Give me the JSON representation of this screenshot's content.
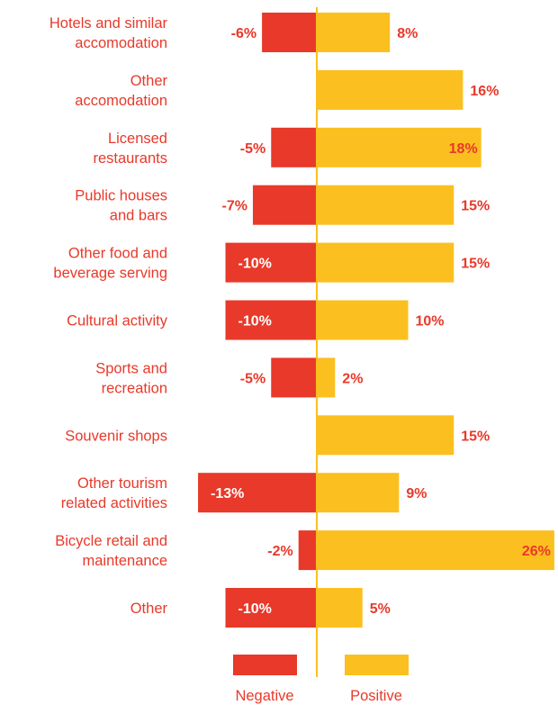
{
  "chart_data": {
    "type": "bar",
    "orientation": "horizontal-diverging",
    "title": "",
    "xlabel": "",
    "ylabel": "",
    "categories": [
      [
        "Hotels and similar",
        "accomodation"
      ],
      [
        "Other",
        "accomodation"
      ],
      [
        "Licensed",
        "restaurants"
      ],
      [
        "Public houses",
        "and bars"
      ],
      [
        "Other food and",
        "beverage serving"
      ],
      [
        "Cultural activity"
      ],
      [
        "Sports and",
        "recreation"
      ],
      [
        "Souvenir shops"
      ],
      [
        "Other tourism",
        "related activities"
      ],
      [
        "Bicycle retail and",
        "maintenance"
      ],
      [
        "Other"
      ]
    ],
    "series": [
      {
        "name": "Negative",
        "color": "#e8392a",
        "values": [
          -6,
          null,
          -5,
          -7,
          -10,
          -10,
          -5,
          null,
          -13,
          -2,
          -10
        ],
        "labels": [
          "-6%",
          "",
          "-5%",
          "-7%",
          "-10%",
          "-10%",
          "-5%",
          "",
          "-13%",
          "-2%",
          "-10%"
        ]
      },
      {
        "name": "Positive",
        "color": "#fbc01f",
        "values": [
          8,
          16,
          18,
          15,
          15,
          10,
          2,
          15,
          9,
          26,
          5
        ],
        "labels": [
          "8%",
          "16%",
          "18%",
          "15%",
          "15%",
          "10%",
          "2%",
          "15%",
          "9%",
          "26%",
          "5%"
        ]
      }
    ],
    "xlim": [
      -13,
      26
    ],
    "grid": false,
    "legend": {
      "position": "bottom-center",
      "items": [
        {
          "label": "Negative",
          "color": "#e8392a"
        },
        {
          "label": "Positive",
          "color": "#fbc01f"
        }
      ]
    }
  }
}
